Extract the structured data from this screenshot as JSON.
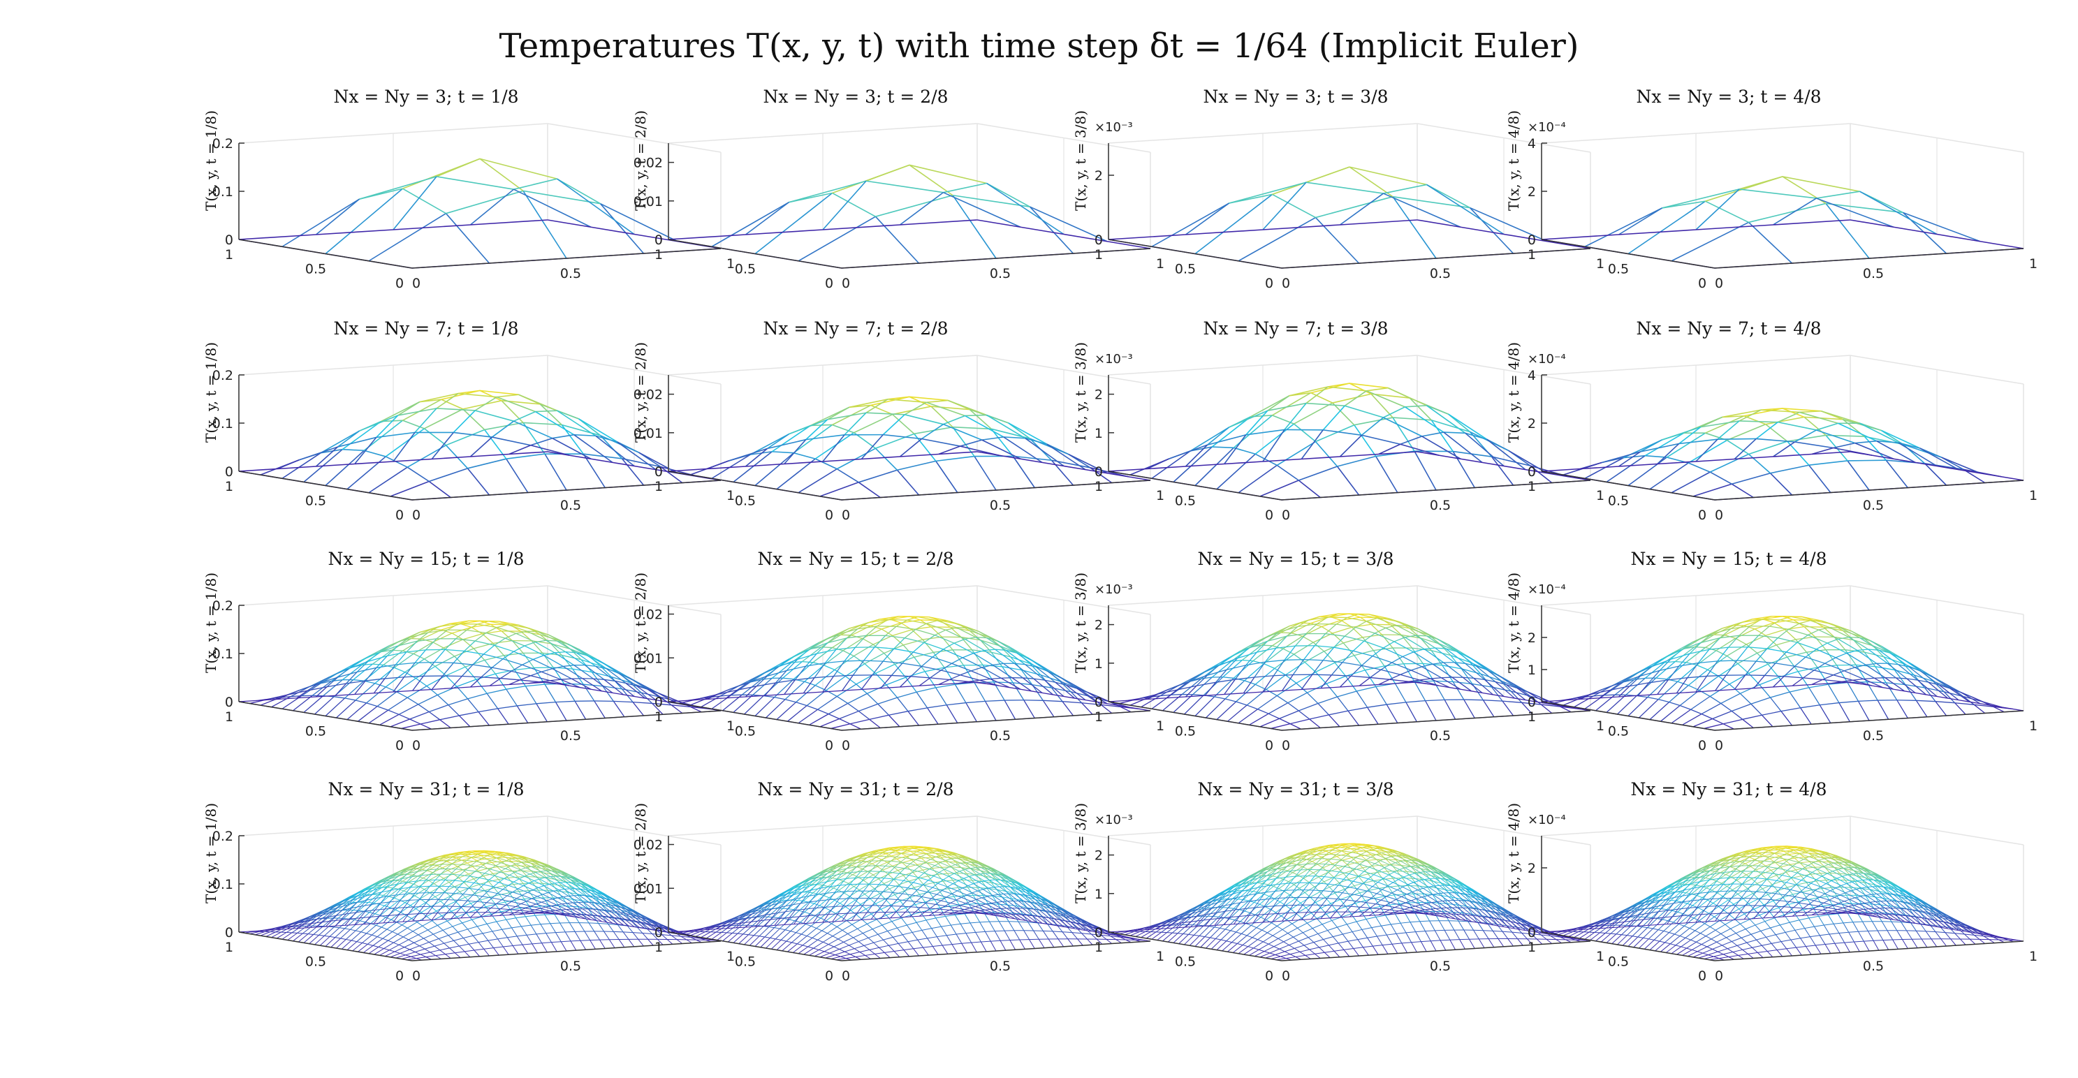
{
  "title": "Temperatures T(x, y, t) with time step δt = 1/64 (Implicit Euler)",
  "colors": {
    "low": "#3e26a8",
    "mid": "#21c3e4",
    "high": "#f9e121",
    "axis": "#333333",
    "grid": "#e4e4e4"
  },
  "chart_data": [
    {
      "type": "surface",
      "title": "Nx = Ny = 3; t = 1/8",
      "zlabel": "T(x, y, t = 1/8)",
      "n": 3,
      "zmax": 0.177,
      "zlim": [
        0,
        0.2
      ],
      "zticks": [
        "0",
        "0.1",
        "0.2"
      ],
      "zmultiplier": "",
      "xticks": [
        "0",
        "0.5",
        "1"
      ],
      "yticks": [
        "0",
        "0.5",
        "1"
      ]
    },
    {
      "type": "surface",
      "title": "Nx = Ny = 3; t = 2/8",
      "zlabel": "T(x, y, t = 2/8)",
      "n": 3,
      "zmax": 0.0205,
      "zlim": [
        0,
        0.025
      ],
      "zticks": [
        "0",
        "0.01",
        "0.02"
      ],
      "zmultiplier": "",
      "xticks": [
        "0",
        "0.5",
        "1"
      ],
      "yticks": [
        "0",
        "0.5",
        "1"
      ]
    },
    {
      "type": "surface",
      "title": "Nx = Ny = 3; t = 3/8",
      "zlabel": "T(x, y, t = 3/8)",
      "n": 3,
      "zmax": 2.4,
      "zlim": [
        0,
        3
      ],
      "zticks": [
        "0",
        "2"
      ],
      "zmultiplier": "×10⁻³",
      "xticks": [
        "0",
        "0.5",
        "1"
      ],
      "yticks": [
        "0",
        "0.5",
        "1"
      ]
    },
    {
      "type": "surface",
      "title": "Nx = Ny = 3; t = 4/8",
      "zlabel": "T(x, y, t = 4/8)",
      "n": 3,
      "zmax": 2.8,
      "zlim": [
        0,
        4
      ],
      "zticks": [
        "0",
        "2",
        "4"
      ],
      "zmultiplier": "×10⁻⁴",
      "xticks": [
        "0",
        "0.5",
        "1"
      ],
      "yticks": [
        "0",
        "0.5",
        "1"
      ]
    },
    {
      "type": "surface",
      "title": "Nx = Ny = 7; t = 1/8",
      "zlabel": "T(x, y, t = 1/8)",
      "n": 7,
      "zmax": 0.177,
      "zlim": [
        0,
        0.2
      ],
      "zticks": [
        "0",
        "0.1",
        "0.2"
      ],
      "zmultiplier": "",
      "xticks": [
        "0",
        "0.5",
        "1"
      ],
      "yticks": [
        "0",
        "0.5",
        "1"
      ]
    },
    {
      "type": "surface",
      "title": "Nx = Ny = 7; t = 2/8",
      "zlabel": "T(x, y, t = 2/8)",
      "n": 7,
      "zmax": 0.0205,
      "zlim": [
        0,
        0.025
      ],
      "zticks": [
        "0",
        "0.01",
        "0.02"
      ],
      "zmultiplier": "",
      "xticks": [
        "0",
        "0.5",
        "1"
      ],
      "yticks": [
        "0",
        "0.5",
        "1"
      ]
    },
    {
      "type": "surface",
      "title": "Nx = Ny = 7; t = 3/8",
      "zlabel": "T(x, y, t = 3/8)",
      "n": 7,
      "zmax": 2.4,
      "zlim": [
        0,
        2.5
      ],
      "zticks": [
        "0",
        "1",
        "2"
      ],
      "zmultiplier": "×10⁻³",
      "xticks": [
        "0",
        "0.5",
        "1"
      ],
      "yticks": [
        "0",
        "0.5",
        "1"
      ]
    },
    {
      "type": "surface",
      "title": "Nx = Ny = 7; t = 4/8",
      "zlabel": "T(x, y, t = 4/8)",
      "n": 7,
      "zmax": 2.8,
      "zlim": [
        0,
        4
      ],
      "zticks": [
        "0",
        "2",
        "4"
      ],
      "zmultiplier": "×10⁻⁴",
      "xticks": [
        "0",
        "0.5",
        "1"
      ],
      "yticks": [
        "0",
        "0.5",
        "1"
      ]
    },
    {
      "type": "surface",
      "title": "Nx = Ny = 15; t = 1/8",
      "zlabel": "T(x, y, t = 1/8)",
      "n": 15,
      "zmax": 0.177,
      "zlim": [
        0,
        0.2
      ],
      "zticks": [
        "0",
        "0.1",
        "0.2"
      ],
      "zmultiplier": "",
      "xticks": [
        "0",
        "0.5",
        "1"
      ],
      "yticks": [
        "0",
        "0.5",
        "1"
      ]
    },
    {
      "type": "surface",
      "title": "Nx = Ny = 15; t = 2/8",
      "zlabel": "T(x, y, t = 2/8)",
      "n": 15,
      "zmax": 0.0205,
      "zlim": [
        0,
        0.022
      ],
      "zticks": [
        "0",
        "0.01",
        "0.02"
      ],
      "zmultiplier": "",
      "xticks": [
        "0",
        "0.5",
        "1"
      ],
      "yticks": [
        "0",
        "0.5",
        "1"
      ]
    },
    {
      "type": "surface",
      "title": "Nx = Ny = 15; t = 3/8",
      "zlabel": "T(x, y, t = 3/8)",
      "n": 15,
      "zmax": 2.4,
      "zlim": [
        0,
        2.5
      ],
      "zticks": [
        "0",
        "1",
        "2"
      ],
      "zmultiplier": "×10⁻³",
      "xticks": [
        "0",
        "0.5",
        "1"
      ],
      "yticks": [
        "0",
        "0.5",
        "1"
      ]
    },
    {
      "type": "surface",
      "title": "Nx = Ny = 15; t = 4/8",
      "zlabel": "T(x, y, t = 4/8)",
      "n": 15,
      "zmax": 2.8,
      "zlim": [
        0,
        3
      ],
      "zticks": [
        "0",
        "1",
        "2"
      ],
      "zmultiplier": "×10⁻⁴",
      "xticks": [
        "0",
        "0.5",
        "1"
      ],
      "yticks": [
        "0",
        "0.5",
        "1"
      ]
    },
    {
      "type": "surface",
      "title": "Nx = Ny = 31; t = 1/8",
      "zlabel": "T(x, y, t = 1/8)",
      "n": 31,
      "zmax": 0.177,
      "zlim": [
        0,
        0.2
      ],
      "zticks": [
        "0",
        "0.1",
        "0.2"
      ],
      "zmultiplier": "",
      "xticks": [
        "0",
        "0.5",
        "1"
      ],
      "yticks": [
        "0",
        "0.5",
        "1"
      ]
    },
    {
      "type": "surface",
      "title": "Nx = Ny = 31; t = 2/8",
      "zlabel": "T(x, y, t = 2/8)",
      "n": 31,
      "zmax": 0.0205,
      "zlim": [
        0,
        0.022
      ],
      "zticks": [
        "0",
        "0.01",
        "0.02"
      ],
      "zmultiplier": "",
      "xticks": [
        "0",
        "0.5",
        "1"
      ],
      "yticks": [
        "0",
        "0.5",
        "1"
      ]
    },
    {
      "type": "surface",
      "title": "Nx = Ny = 31; t = 3/8",
      "zlabel": "T(x, y, t = 3/8)",
      "n": 31,
      "zmax": 2.4,
      "zlim": [
        0,
        2.5
      ],
      "zticks": [
        "0",
        "1",
        "2"
      ],
      "zmultiplier": "×10⁻³",
      "xticks": [
        "0",
        "0.5",
        "1"
      ],
      "yticks": [
        "0",
        "0.5",
        "1"
      ]
    },
    {
      "type": "surface",
      "title": "Nx = Ny = 31; t = 4/8",
      "zlabel": "T(x, y, t = 4/8)",
      "n": 31,
      "zmax": 2.8,
      "zlim": [
        0,
        3
      ],
      "zticks": [
        "0",
        "2"
      ],
      "zmultiplier": "×10⁻⁴",
      "xticks": [
        "0",
        "0.5",
        "1"
      ],
      "yticks": [
        "0",
        "0.5",
        "1"
      ]
    }
  ]
}
